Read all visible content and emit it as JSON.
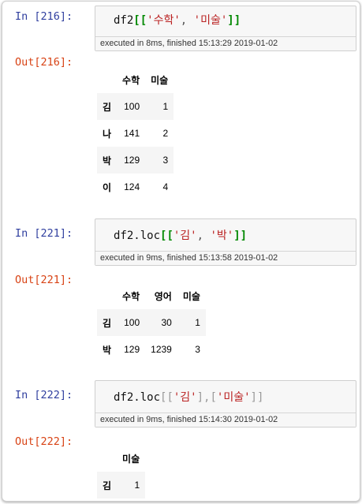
{
  "cells": [
    {
      "in_prompt": "In [216]:",
      "code": {
        "var": "df2",
        "open": "[[",
        "s1": "'수학'",
        "sep": ", ",
        "s2": "'미술'",
        "close": "]]"
      },
      "exec": "executed in 8ms, finished 15:13:29 2019-01-02",
      "out_prompt": "Out[216]:",
      "table": {
        "columns": [
          "수학",
          "미술"
        ],
        "rows": [
          {
            "index": "김",
            "values": [
              "100",
              "1"
            ]
          },
          {
            "index": "나",
            "values": [
              "141",
              "2"
            ]
          },
          {
            "index": "박",
            "values": [
              "129",
              "3"
            ]
          },
          {
            "index": "이",
            "values": [
              "124",
              "4"
            ]
          }
        ]
      }
    },
    {
      "in_prompt": "In [221]:",
      "code": {
        "var": "df2.loc",
        "open": "[[",
        "s1": "'김'",
        "sep": ", ",
        "s2": "'박'",
        "close": "]]"
      },
      "exec": "executed in 9ms, finished 15:13:58 2019-01-02",
      "out_prompt": "Out[221]:",
      "table": {
        "columns": [
          "수학",
          "영어",
          "미술"
        ],
        "rows": [
          {
            "index": "김",
            "values": [
              "100",
              "30",
              "1"
            ]
          },
          {
            "index": "박",
            "values": [
              "129",
              "1239",
              "3"
            ]
          }
        ]
      }
    },
    {
      "in_prompt": "In [222]:",
      "code": {
        "var": "df2.loc",
        "open": "[[",
        "s1": "'김'",
        "mid": "],[",
        "s2": "'미술'",
        "close": "]]"
      },
      "exec": "executed in 9ms, finished 15:14:30 2019-01-02",
      "out_prompt": "Out[222]:",
      "table": {
        "columns": [
          "미술"
        ],
        "rows": [
          {
            "index": "김",
            "values": [
              "1"
            ]
          }
        ]
      }
    }
  ]
}
